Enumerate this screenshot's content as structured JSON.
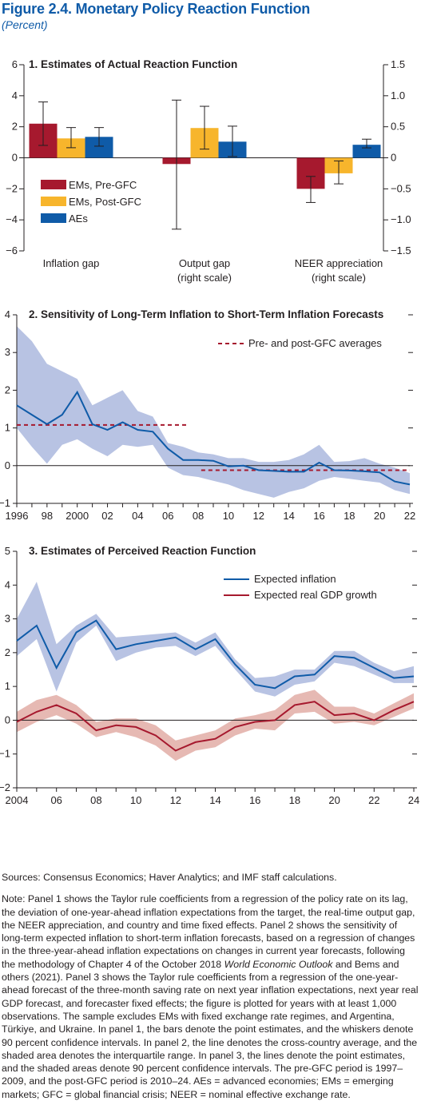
{
  "figure": {
    "label": "Figure 2.4.",
    "title": "Monetary Policy Reaction Function",
    "subtitle": "(Percent)"
  },
  "colors": {
    "title_blue": "#0f5ba8",
    "ems_pre": "#a6192e",
    "ems_post": "#f7b52c",
    "aes": "#0f5ba8",
    "band_blue": "#b8c3e3",
    "band_red": "#e6b9b3",
    "avg_red": "#a6192e",
    "line_blue": "#0f5ba8",
    "line_red": "#a6192e"
  },
  "chart_data": [
    {
      "type": "bar",
      "panel_title": "1. Estimates of Actual Reaction Function",
      "categories": [
        {
          "line1": "Inflation gap",
          "line2": "",
          "scale": "left"
        },
        {
          "line1": "Output gap",
          "line2": "(right scale)",
          "scale": "right"
        },
        {
          "line1": "NEER appreciation",
          "line2": "(right scale)",
          "scale": "right"
        }
      ],
      "series": [
        {
          "name": "EMs, Pre-GFC",
          "values": [
            2.2,
            -0.1,
            -0.5
          ],
          "ci": [
            [
              0.8,
              3.6
            ],
            [
              -1.15,
              0.93
            ],
            [
              -0.72,
              -0.3
            ]
          ]
        },
        {
          "name": "EMs, Post-GFC",
          "values": [
            1.25,
            0.48,
            -0.25
          ],
          "ci": [
            [
              0.65,
              1.95
            ],
            [
              0.14,
              0.83
            ],
            [
              -0.42,
              -0.05
            ]
          ]
        },
        {
          "name": "AEs",
          "values": [
            1.35,
            0.26,
            0.21
          ],
          "ci": [
            [
              0.75,
              1.95
            ],
            [
              0.02,
              0.51
            ],
            [
              0.16,
              0.3
            ]
          ]
        }
      ],
      "y_left": {
        "min": -6,
        "max": 6,
        "ticks": [
          "6",
          "4",
          "2",
          "0",
          "−2",
          "−4",
          "−6"
        ]
      },
      "y_right": {
        "min": -1.5,
        "max": 1.5,
        "ticks": [
          "1.5",
          "1.0",
          "0.5",
          "0",
          "−0.5",
          "−1.0",
          "−1.5"
        ]
      },
      "legend": "left-lower"
    },
    {
      "type": "area",
      "panel_title": "2. Sensitivity of Long-Term Inflation to Short-Term Inflation Forecasts",
      "x": [
        1996,
        1997,
        1998,
        1999,
        2000,
        2001,
        2002,
        2003,
        2004,
        2005,
        2006,
        2007,
        2008,
        2009,
        2010,
        2011,
        2012,
        2013,
        2014,
        2015,
        2016,
        2017,
        2018,
        2019,
        2020,
        2021,
        2022
      ],
      "series": [
        {
          "name": "",
          "kind": "line",
          "values": [
            1.6,
            1.35,
            1.1,
            1.35,
            1.95,
            1.1,
            0.95,
            1.15,
            0.95,
            0.9,
            0.45,
            0.15,
            0.15,
            0.13,
            -0.02,
            0.0,
            -0.12,
            -0.14,
            -0.16,
            -0.16,
            0.08,
            -0.12,
            -0.13,
            -0.15,
            -0.18,
            -0.42,
            -0.5
          ]
        },
        {
          "name": "",
          "kind": "band",
          "upper": [
            3.7,
            3.3,
            2.7,
            2.5,
            2.3,
            1.6,
            1.8,
            2.0,
            1.45,
            1.3,
            0.6,
            0.5,
            0.35,
            0.3,
            0.2,
            0.2,
            0.1,
            0.1,
            0.15,
            0.3,
            0.55,
            0.1,
            0.12,
            0.2,
            0.05,
            -0.05,
            -0.2
          ],
          "lower": [
            1.0,
            0.5,
            0.05,
            0.55,
            0.7,
            0.45,
            0.25,
            0.55,
            0.5,
            0.55,
            -0.05,
            -0.25,
            -0.3,
            -0.4,
            -0.5,
            -0.65,
            -0.75,
            -0.85,
            -0.7,
            -0.6,
            -0.4,
            -0.3,
            -0.35,
            -0.4,
            -0.45,
            -0.65,
            -0.75
          ]
        },
        {
          "name": "Pre- and post-GFC averages",
          "kind": "dashed",
          "segments": [
            {
              "x": [
                1996,
                2007.4
              ],
              "y": 1.08
            },
            {
              "x": [
                2008.2,
                2022
              ],
              "y": -0.12
            }
          ]
        }
      ],
      "x_ticks": [
        "1996",
        "98",
        "2000",
        "02",
        "04",
        "06",
        "08",
        "10",
        "12",
        "14",
        "16",
        "18",
        "20",
        "22"
      ],
      "y_ticks": [
        "4",
        "3",
        "2",
        "1",
        "0",
        "−1"
      ],
      "ylim": [
        -1,
        4
      ],
      "legend": "top-right"
    },
    {
      "type": "line",
      "panel_title": "3. Estimates of Perceived Reaction Function",
      "x": [
        2004,
        2005,
        2006,
        2007,
        2008,
        2009,
        2010,
        2011,
        2012,
        2013,
        2014,
        2015,
        2016,
        2017,
        2018,
        2019,
        2020,
        2021,
        2022,
        2023,
        2024
      ],
      "series": [
        {
          "name": "Expected inflation",
          "values": [
            2.35,
            2.8,
            1.55,
            2.6,
            2.95,
            2.1,
            2.25,
            2.35,
            2.45,
            2.1,
            2.4,
            1.65,
            1.05,
            0.95,
            1.3,
            1.35,
            1.9,
            1.85,
            1.55,
            1.25,
            1.3
          ],
          "upper": [
            3.0,
            4.1,
            2.25,
            2.8,
            3.15,
            2.45,
            2.5,
            2.55,
            2.6,
            2.3,
            2.6,
            1.8,
            1.25,
            1.3,
            1.5,
            1.5,
            2.05,
            2.05,
            1.7,
            1.45,
            1.6
          ],
          "lower": [
            1.9,
            2.4,
            0.85,
            2.3,
            2.8,
            1.75,
            2.0,
            2.15,
            2.2,
            1.9,
            2.2,
            1.5,
            0.85,
            0.7,
            1.05,
            1.15,
            1.7,
            1.6,
            1.35,
            1.1,
            1.1
          ]
        },
        {
          "name": "Expected real GDP growth",
          "values": [
            -0.05,
            0.25,
            0.45,
            0.2,
            -0.3,
            -0.15,
            -0.2,
            -0.45,
            -0.9,
            -0.65,
            -0.55,
            -0.2,
            -0.05,
            0.0,
            0.45,
            0.55,
            0.15,
            0.2,
            0.0,
            0.3,
            0.55
          ],
          "upper": [
            0.25,
            0.6,
            0.75,
            0.45,
            -0.05,
            0.05,
            0.05,
            -0.15,
            -0.6,
            -0.45,
            -0.3,
            0.05,
            0.15,
            0.3,
            0.75,
            0.9,
            0.4,
            0.4,
            0.2,
            0.5,
            0.8
          ],
          "lower": [
            -0.35,
            -0.05,
            0.15,
            -0.1,
            -0.5,
            -0.35,
            -0.5,
            -0.75,
            -1.2,
            -0.9,
            -0.8,
            -0.45,
            -0.25,
            -0.3,
            0.2,
            0.25,
            -0.1,
            -0.05,
            -0.15,
            0.1,
            0.35
          ]
        }
      ],
      "x_ticks": [
        "2004",
        "06",
        "08",
        "10",
        "12",
        "14",
        "16",
        "18",
        "20",
        "22",
        "24"
      ],
      "y_ticks": [
        "5",
        "4",
        "3",
        "2",
        "1",
        "0",
        "−1",
        "−2"
      ],
      "ylim": [
        -2,
        5
      ],
      "legend": "top-right"
    }
  ],
  "notes": {
    "sources": "Sources: Consensus Economics; Haver Analytics; and IMF staff calculations.",
    "note_before": "Note: Panel 1 shows the Taylor rule coefficients from a regression of the policy rate on its lag, the deviation of one-year-ahead inflation expectations from the target, the real-time output gap, the NEER appreciation, and country and time fixed effects. Panel 2 shows the sensitivity of long-term expected inflation to short-term inflation forecasts, based on a regression of changes in the three-year-ahead inflation expectations on changes in current year forecasts, following the methodology of Chapter 4 of the October 2018 ",
    "note_italic": "World Economic Outlook",
    "note_after": " and Bems and others (2021). Panel 3 shows the Taylor rule coefficients from a regression of the one-year-ahead forecast of the three-month saving rate on next year inflation expectations, next year real GDP forecast, and forecaster fixed effects; the figure is plotted for years with at least 1,000 observations. The sample excludes EMs with fixed exchange rate regimes, and Argentina, Türkiye, and Ukraine. In panel 1, the bars denote the point estimates, and the whiskers denote 90 percent confidence intervals. In panel 2, the line denotes the cross-country average, and the shaded area denotes the interquartile range. In panel 3, the lines denote the point estimates, and the shaded areas denote 90 percent confidence intervals. The pre-GFC period is 1997–2009, and the post-GFC period is 2010–24. AEs = advanced economies; EMs = emerging markets; GFC = global financial crisis; NEER = nominal effective exchange rate."
  }
}
